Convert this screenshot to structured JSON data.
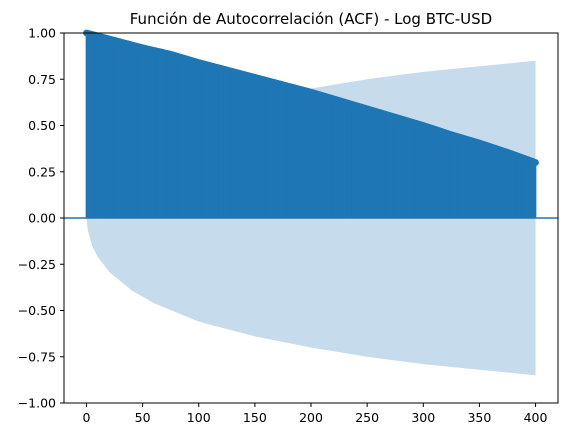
{
  "chart_data": {
    "type": "bar",
    "title": "Función de Autocorrelación (ACF) - Log BTC-USD",
    "xlabel": "",
    "ylabel": "",
    "xlim": [
      -20,
      420
    ],
    "ylim": [
      -1.0,
      1.0
    ],
    "x_ticks": [
      0,
      50,
      100,
      150,
      200,
      250,
      300,
      350,
      400
    ],
    "x_tick_labels": [
      "0",
      "50",
      "100",
      "150",
      "200",
      "250",
      "300",
      "350",
      "400"
    ],
    "y_ticks": [
      1.0,
      0.75,
      0.5,
      0.25,
      0.0,
      -0.25,
      -0.5,
      -0.75,
      -1.0
    ],
    "y_tick_labels": [
      "1.00",
      "0.75",
      "0.50",
      "0.25",
      "0.00",
      "−0.25",
      "−0.50",
      "−0.75",
      "−1.00"
    ],
    "grid": false,
    "legend": false,
    "series": [
      {
        "lags": [
          0,
          25,
          50,
          75,
          100,
          125,
          150,
          175,
          200,
          225,
          250,
          275,
          300,
          325,
          350,
          375,
          400
        ],
        "values": [
          1.0,
          0.96,
          0.92,
          0.885,
          0.84,
          0.8,
          0.76,
          0.72,
          0.68,
          0.635,
          0.59,
          0.545,
          0.5,
          0.45,
          0.405,
          0.355,
          0.3
        ]
      }
    ],
    "confidence_interval": {
      "lags": [
        0,
        1,
        5,
        10,
        20,
        40,
        60,
        80,
        100,
        150,
        200,
        250,
        300,
        350,
        400
      ],
      "upper": [
        0.0,
        0.06,
        0.15,
        0.21,
        0.29,
        0.39,
        0.46,
        0.51,
        0.56,
        0.64,
        0.7,
        0.75,
        0.79,
        0.82,
        0.85
      ]
    },
    "colors": {
      "stem": "#1f77b4",
      "confidence_band": "#c6dbec",
      "zero_line": "#1f77b4"
    }
  }
}
